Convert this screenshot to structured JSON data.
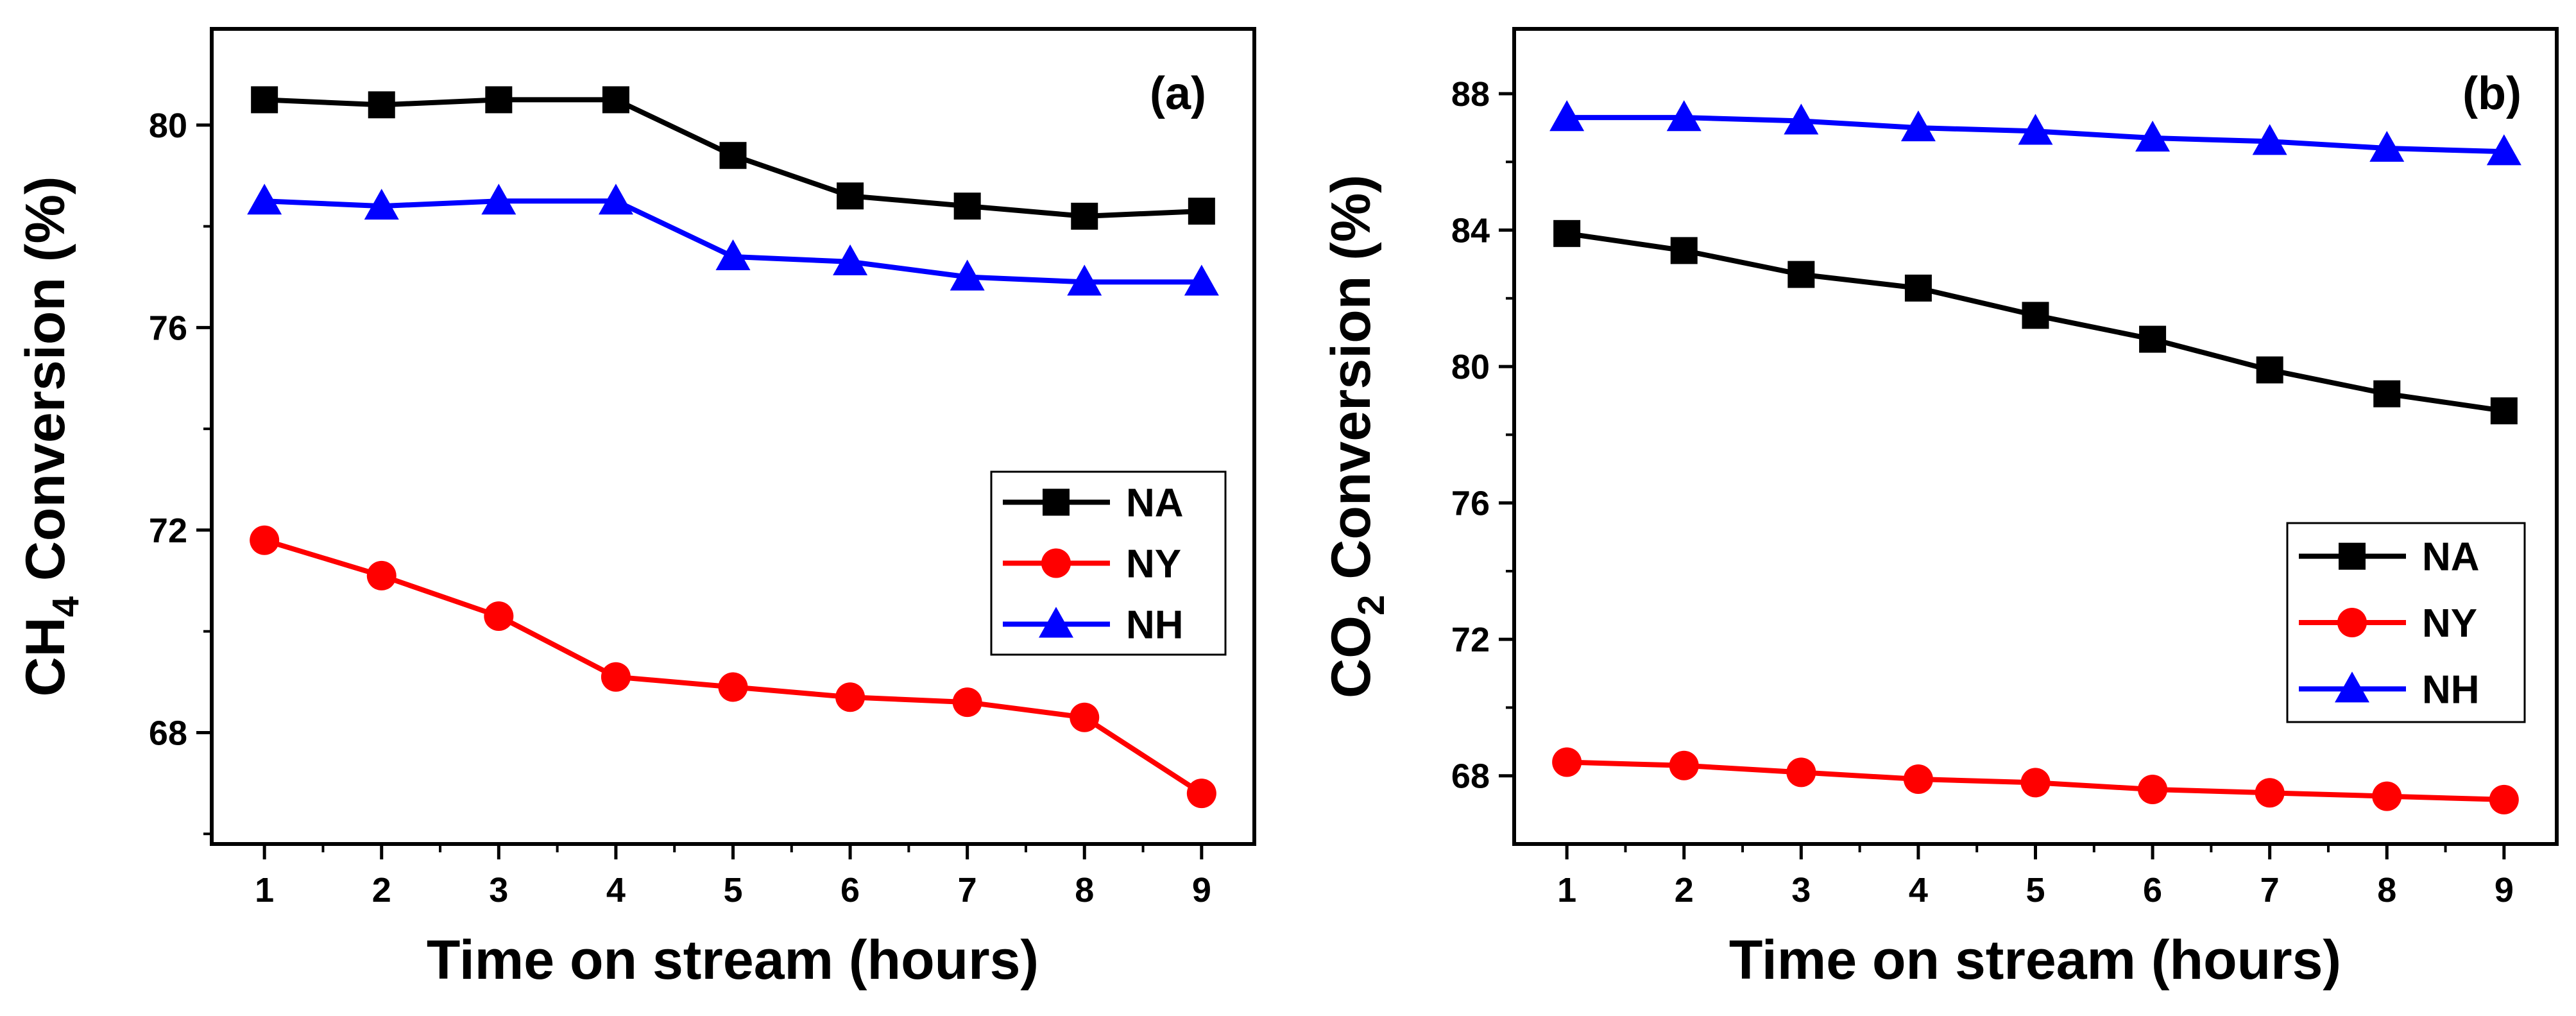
{
  "colors": {
    "NA": "#000000",
    "NY": "#ff0000",
    "NH": "#0000ff"
  },
  "chart_data": [
    {
      "type": "line",
      "panel_label": "(a)",
      "x": [
        1,
        2,
        3,
        4,
        5,
        6,
        7,
        8,
        9
      ],
      "xlabel": "Time on stream (hours)",
      "ylabel_main": "CH",
      "ylabel_sub": "4",
      "ylabel_rest": " Conversion (%)",
      "xlim": [
        0.55,
        9.45
      ],
      "ylim": [
        65.8,
        81.9
      ],
      "xticks": [
        "1",
        "2",
        "3",
        "4",
        "5",
        "6",
        "7",
        "8",
        "9"
      ],
      "yticks": [
        68,
        72,
        76,
        80
      ],
      "ytick_labels": [
        "68",
        "72",
        "76",
        "80"
      ],
      "legend_position": "center-right",
      "series": [
        {
          "name": "NA",
          "marker": "square",
          "values": [
            80.5,
            80.4,
            80.5,
            80.5,
            79.4,
            78.6,
            78.4,
            78.2,
            78.3
          ]
        },
        {
          "name": "NY",
          "marker": "circle",
          "values": [
            71.8,
            71.1,
            70.3,
            69.1,
            68.9,
            68.7,
            68.6,
            68.3,
            66.8
          ]
        },
        {
          "name": "NH",
          "marker": "triangle",
          "values": [
            78.5,
            78.4,
            78.5,
            78.5,
            77.4,
            77.3,
            77.0,
            76.9,
            76.9
          ]
        }
      ]
    },
    {
      "type": "line",
      "panel_label": "(b)",
      "x": [
        1,
        2,
        3,
        4,
        5,
        6,
        7,
        8,
        9
      ],
      "xlabel": "Time on stream (hours)",
      "ylabel_main": "CO",
      "ylabel_sub": "2",
      "ylabel_rest": " Conversion (%)",
      "xlim": [
        0.55,
        9.45
      ],
      "ylim": [
        66.0,
        89.9
      ],
      "xticks": [
        "1",
        "2",
        "3",
        "4",
        "5",
        "6",
        "7",
        "8",
        "9"
      ],
      "yticks": [
        68,
        72,
        76,
        80,
        84,
        88
      ],
      "ytick_labels": [
        "68",
        "72",
        "76",
        "80",
        "84",
        "88"
      ],
      "legend_position": "lower-right",
      "series": [
        {
          "name": "NA",
          "marker": "square",
          "values": [
            83.9,
            83.4,
            82.7,
            82.3,
            81.5,
            80.8,
            79.9,
            79.2,
            78.7
          ]
        },
        {
          "name": "NY",
          "marker": "circle",
          "values": [
            68.4,
            68.3,
            68.1,
            67.9,
            67.8,
            67.6,
            67.5,
            67.4,
            67.3
          ]
        },
        {
          "name": "NH",
          "marker": "triangle",
          "values": [
            87.3,
            87.3,
            87.2,
            87.0,
            86.9,
            86.7,
            86.6,
            86.4,
            86.3
          ]
        }
      ]
    }
  ]
}
